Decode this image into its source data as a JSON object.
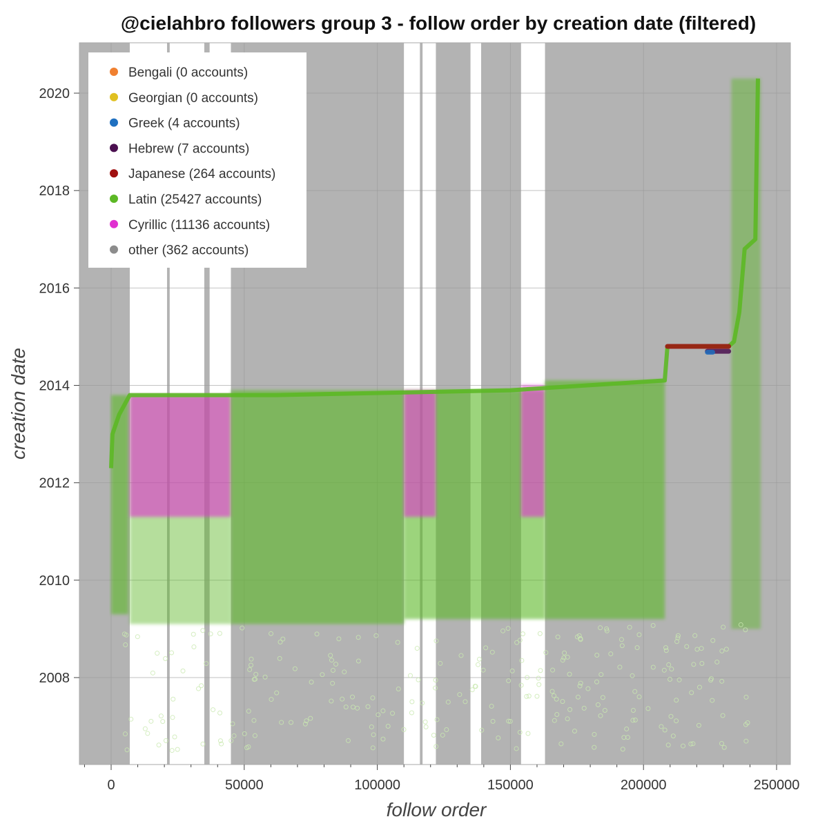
{
  "chart_data": {
    "type": "scatter",
    "title": "@cielahbro followers group 3 - follow order by creation date (filtered)",
    "xlabel": "follow order",
    "ylabel": "creation date",
    "xlim": [
      -12000,
      255000
    ],
    "ylim": [
      2006.2,
      2021.0
    ],
    "x_ticks": [
      0,
      50000,
      100000,
      150000,
      200000,
      250000
    ],
    "x_tick_labels": [
      "0",
      "50000",
      "100000",
      "150000",
      "200000",
      "250000"
    ],
    "y_ticks": [
      2008,
      2010,
      2012,
      2014,
      2016,
      2018,
      2020
    ],
    "y_tick_labels": [
      "2008",
      "2010",
      "2012",
      "2014",
      "2016",
      "2018",
      "2020"
    ],
    "grid": true,
    "legend_position": "top-left",
    "plot_background": "#b3b3b3",
    "series": [
      {
        "name": "Bengali",
        "label": "Bengali (0 accounts)",
        "color": "#f08030",
        "count": 0
      },
      {
        "name": "Georgian",
        "label": "Georgian (0 accounts)",
        "color": "#e0c020",
        "count": 0
      },
      {
        "name": "Greek",
        "label": "Greek (4 accounts)",
        "color": "#1f70c0",
        "count": 4
      },
      {
        "name": "Hebrew",
        "label": "Hebrew (7 accounts)",
        "color": "#4b1050",
        "count": 7
      },
      {
        "name": "Japanese",
        "label": "Japanese (264 accounts)",
        "color": "#a01010",
        "count": 264
      },
      {
        "name": "Latin",
        "label": "Latin (25427 accounts)",
        "color": "#5cb825",
        "count": 25427
      },
      {
        "name": "Cyrillic",
        "label": "Cyrillic (11136 accounts)",
        "color": "#e030d0",
        "count": 11136
      },
      {
        "name": "other",
        "label": "other (362 accounts)",
        "color": "#8c8c8c",
        "count": 362
      }
    ],
    "unsampled_ranges": [
      [
        7000,
        21000
      ],
      [
        22000,
        35000
      ],
      [
        37000,
        45000
      ],
      [
        110000,
        116000
      ],
      [
        117000,
        122000
      ],
      [
        135000,
        139000
      ],
      [
        154000,
        163000
      ]
    ],
    "clusters": [
      {
        "series": "Latin",
        "x": [
          0,
          6500
        ],
        "y": [
          2009.3,
          2013.8
        ],
        "density": "medium"
      },
      {
        "series": "Latin",
        "x": [
          7000,
          45000
        ],
        "y": [
          2009.1,
          2013.8
        ],
        "density": "light"
      },
      {
        "series": "Cyrillic",
        "x": [
          7000,
          45000
        ],
        "y": [
          2011.3,
          2013.8
        ],
        "density": "medium"
      },
      {
        "series": "Latin",
        "x": [
          45000,
          110000
        ],
        "y": [
          2009.1,
          2013.9
        ],
        "density": "medium"
      },
      {
        "series": "Latin",
        "x": [
          110000,
          163000
        ],
        "y": [
          2009.2,
          2013.9
        ],
        "density": "medium"
      },
      {
        "series": "Cyrillic",
        "x": [
          110000,
          122000
        ],
        "y": [
          2011.3,
          2013.9
        ],
        "density": "medium"
      },
      {
        "series": "Cyrillic",
        "x": [
          154000,
          163000
        ],
        "y": [
          2011.3,
          2014.0
        ],
        "density": "medium"
      },
      {
        "series": "Latin",
        "x": [
          163000,
          208000
        ],
        "y": [
          2009.2,
          2014.1
        ],
        "density": "medium"
      },
      {
        "series": "Latin",
        "x": [
          233000,
          244000
        ],
        "y": [
          2009.0,
          2020.3
        ],
        "density": "light"
      }
    ],
    "trend": [
      {
        "x": 0,
        "y": 2012.3
      },
      {
        "x": 500,
        "y": 2013.0
      },
      {
        "x": 3000,
        "y": 2013.4
      },
      {
        "x": 6000,
        "y": 2013.7
      },
      {
        "x": 7000,
        "y": 2013.8
      },
      {
        "x": 62000,
        "y": 2013.8
      },
      {
        "x": 150000,
        "y": 2013.9
      },
      {
        "x": 208000,
        "y": 2014.1
      },
      {
        "x": 209000,
        "y": 2014.8
      },
      {
        "x": 232000,
        "y": 2014.8
      },
      {
        "x": 234000,
        "y": 2014.9
      },
      {
        "x": 236000,
        "y": 2015.5
      },
      {
        "x": 238000,
        "y": 2016.8
      },
      {
        "x": 242000,
        "y": 2017.0
      },
      {
        "x": 243000,
        "y": 2020.3
      }
    ],
    "bands": [
      {
        "series": "Japanese",
        "x": [
          209000,
          232000
        ],
        "y": 2014.8
      },
      {
        "series": "Hebrew",
        "x": [
          224000,
          232000
        ],
        "y": 2014.7
      },
      {
        "series": "Greek",
        "x": [
          224000,
          226000
        ],
        "y": 2014.68
      }
    ]
  }
}
